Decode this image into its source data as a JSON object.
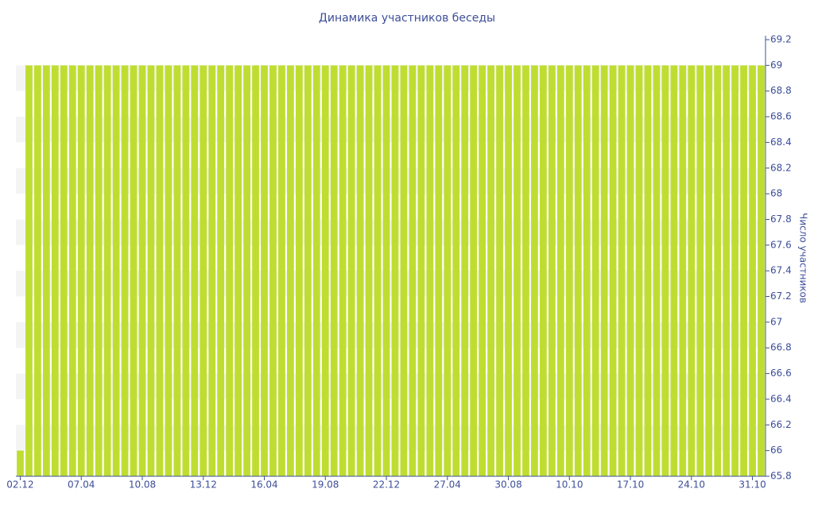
{
  "chart_data": {
    "type": "bar",
    "title": "Динамика участников беседы",
    "y_axis_label": "Число участников",
    "categories": [
      "02.12",
      null,
      null,
      null,
      null,
      null,
      null,
      "07.04",
      null,
      null,
      null,
      null,
      null,
      null,
      "10.08",
      null,
      null,
      null,
      null,
      null,
      null,
      "13.12",
      null,
      null,
      null,
      null,
      null,
      null,
      "16.04",
      null,
      null,
      null,
      null,
      null,
      null,
      "19.08",
      null,
      null,
      null,
      null,
      null,
      null,
      "22.12",
      null,
      null,
      null,
      null,
      null,
      null,
      "27.04",
      null,
      null,
      null,
      null,
      null,
      null,
      "30.08",
      null,
      null,
      null,
      null,
      null,
      null,
      "10.10",
      null,
      null,
      null,
      null,
      null,
      null,
      "17.10",
      null,
      null,
      null,
      null,
      null,
      null,
      "24.10",
      null,
      null,
      null,
      null,
      null,
      null,
      "31.10",
      null
    ],
    "values": [
      66,
      69,
      69,
      69,
      69,
      69,
      69,
      69,
      69,
      69,
      69,
      69,
      69,
      69,
      69,
      69,
      69,
      69,
      69,
      69,
      69,
      69,
      69,
      69,
      69,
      69,
      69,
      69,
      69,
      69,
      69,
      69,
      69,
      69,
      69,
      69,
      69,
      69,
      69,
      69,
      69,
      69,
      69,
      69,
      69,
      69,
      69,
      69,
      69,
      69,
      69,
      69,
      69,
      69,
      69,
      69,
      69,
      69,
      69,
      69,
      69,
      69,
      69,
      69,
      69,
      69,
      69,
      69,
      69,
      69,
      69,
      69,
      69,
      69,
      69,
      69,
      69,
      69,
      69,
      69,
      69,
      69,
      69,
      69,
      69,
      69
    ],
    "color": "#bfdd31",
    "ylim": [
      65.8,
      69.2
    ],
    "yticks": [
      65.8,
      66,
      66.2,
      66.4,
      66.6,
      66.8,
      67,
      67.2,
      67.4,
      67.6,
      67.8,
      68,
      68.2,
      68.4,
      68.6,
      68.8,
      69,
      69.2
    ],
    "y_axis_side": "right",
    "grid": "bands"
  }
}
